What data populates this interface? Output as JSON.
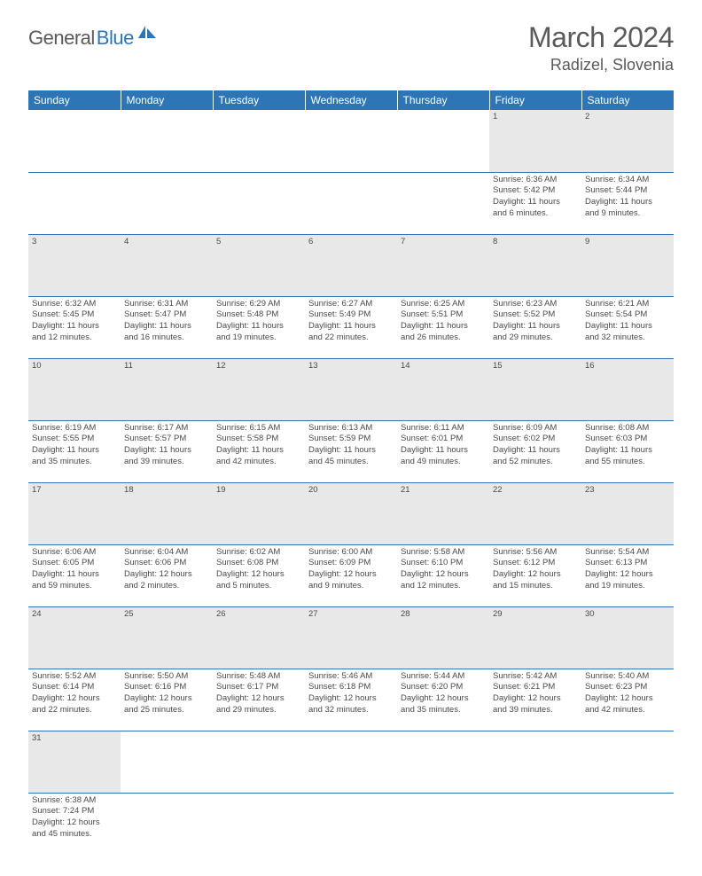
{
  "brand": {
    "part1": "General",
    "part2": "Blue"
  },
  "title": {
    "month_year": "March 2024",
    "location": "Radizel, Slovenia"
  },
  "colors": {
    "header_bg": "#2e75b6",
    "header_text": "#ffffff",
    "daynum_bg": "#e8e8e8",
    "row_divider": "#2e75b6",
    "text": "#4a4a4a",
    "brand_gray": "#5a5a5a",
    "brand_blue": "#2e75b6",
    "page_bg": "#ffffff"
  },
  "weekdays": [
    "Sunday",
    "Monday",
    "Tuesday",
    "Wednesday",
    "Thursday",
    "Friday",
    "Saturday"
  ],
  "weeks": [
    [
      null,
      null,
      null,
      null,
      null,
      {
        "n": "1",
        "sunrise": "Sunrise: 6:36 AM",
        "sunset": "Sunset: 5:42 PM",
        "day1": "Daylight: 11 hours",
        "day2": "and 6 minutes."
      },
      {
        "n": "2",
        "sunrise": "Sunrise: 6:34 AM",
        "sunset": "Sunset: 5:44 PM",
        "day1": "Daylight: 11 hours",
        "day2": "and 9 minutes."
      }
    ],
    [
      {
        "n": "3",
        "sunrise": "Sunrise: 6:32 AM",
        "sunset": "Sunset: 5:45 PM",
        "day1": "Daylight: 11 hours",
        "day2": "and 12 minutes."
      },
      {
        "n": "4",
        "sunrise": "Sunrise: 6:31 AM",
        "sunset": "Sunset: 5:47 PM",
        "day1": "Daylight: 11 hours",
        "day2": "and 16 minutes."
      },
      {
        "n": "5",
        "sunrise": "Sunrise: 6:29 AM",
        "sunset": "Sunset: 5:48 PM",
        "day1": "Daylight: 11 hours",
        "day2": "and 19 minutes."
      },
      {
        "n": "6",
        "sunrise": "Sunrise: 6:27 AM",
        "sunset": "Sunset: 5:49 PM",
        "day1": "Daylight: 11 hours",
        "day2": "and 22 minutes."
      },
      {
        "n": "7",
        "sunrise": "Sunrise: 6:25 AM",
        "sunset": "Sunset: 5:51 PM",
        "day1": "Daylight: 11 hours",
        "day2": "and 26 minutes."
      },
      {
        "n": "8",
        "sunrise": "Sunrise: 6:23 AM",
        "sunset": "Sunset: 5:52 PM",
        "day1": "Daylight: 11 hours",
        "day2": "and 29 minutes."
      },
      {
        "n": "9",
        "sunrise": "Sunrise: 6:21 AM",
        "sunset": "Sunset: 5:54 PM",
        "day1": "Daylight: 11 hours",
        "day2": "and 32 minutes."
      }
    ],
    [
      {
        "n": "10",
        "sunrise": "Sunrise: 6:19 AM",
        "sunset": "Sunset: 5:55 PM",
        "day1": "Daylight: 11 hours",
        "day2": "and 35 minutes."
      },
      {
        "n": "11",
        "sunrise": "Sunrise: 6:17 AM",
        "sunset": "Sunset: 5:57 PM",
        "day1": "Daylight: 11 hours",
        "day2": "and 39 minutes."
      },
      {
        "n": "12",
        "sunrise": "Sunrise: 6:15 AM",
        "sunset": "Sunset: 5:58 PM",
        "day1": "Daylight: 11 hours",
        "day2": "and 42 minutes."
      },
      {
        "n": "13",
        "sunrise": "Sunrise: 6:13 AM",
        "sunset": "Sunset: 5:59 PM",
        "day1": "Daylight: 11 hours",
        "day2": "and 45 minutes."
      },
      {
        "n": "14",
        "sunrise": "Sunrise: 6:11 AM",
        "sunset": "Sunset: 6:01 PM",
        "day1": "Daylight: 11 hours",
        "day2": "and 49 minutes."
      },
      {
        "n": "15",
        "sunrise": "Sunrise: 6:09 AM",
        "sunset": "Sunset: 6:02 PM",
        "day1": "Daylight: 11 hours",
        "day2": "and 52 minutes."
      },
      {
        "n": "16",
        "sunrise": "Sunrise: 6:08 AM",
        "sunset": "Sunset: 6:03 PM",
        "day1": "Daylight: 11 hours",
        "day2": "and 55 minutes."
      }
    ],
    [
      {
        "n": "17",
        "sunrise": "Sunrise: 6:06 AM",
        "sunset": "Sunset: 6:05 PM",
        "day1": "Daylight: 11 hours",
        "day2": "and 59 minutes."
      },
      {
        "n": "18",
        "sunrise": "Sunrise: 6:04 AM",
        "sunset": "Sunset: 6:06 PM",
        "day1": "Daylight: 12 hours",
        "day2": "and 2 minutes."
      },
      {
        "n": "19",
        "sunrise": "Sunrise: 6:02 AM",
        "sunset": "Sunset: 6:08 PM",
        "day1": "Daylight: 12 hours",
        "day2": "and 5 minutes."
      },
      {
        "n": "20",
        "sunrise": "Sunrise: 6:00 AM",
        "sunset": "Sunset: 6:09 PM",
        "day1": "Daylight: 12 hours",
        "day2": "and 9 minutes."
      },
      {
        "n": "21",
        "sunrise": "Sunrise: 5:58 AM",
        "sunset": "Sunset: 6:10 PM",
        "day1": "Daylight: 12 hours",
        "day2": "and 12 minutes."
      },
      {
        "n": "22",
        "sunrise": "Sunrise: 5:56 AM",
        "sunset": "Sunset: 6:12 PM",
        "day1": "Daylight: 12 hours",
        "day2": "and 15 minutes."
      },
      {
        "n": "23",
        "sunrise": "Sunrise: 5:54 AM",
        "sunset": "Sunset: 6:13 PM",
        "day1": "Daylight: 12 hours",
        "day2": "and 19 minutes."
      }
    ],
    [
      {
        "n": "24",
        "sunrise": "Sunrise: 5:52 AM",
        "sunset": "Sunset: 6:14 PM",
        "day1": "Daylight: 12 hours",
        "day2": "and 22 minutes."
      },
      {
        "n": "25",
        "sunrise": "Sunrise: 5:50 AM",
        "sunset": "Sunset: 6:16 PM",
        "day1": "Daylight: 12 hours",
        "day2": "and 25 minutes."
      },
      {
        "n": "26",
        "sunrise": "Sunrise: 5:48 AM",
        "sunset": "Sunset: 6:17 PM",
        "day1": "Daylight: 12 hours",
        "day2": "and 29 minutes."
      },
      {
        "n": "27",
        "sunrise": "Sunrise: 5:46 AM",
        "sunset": "Sunset: 6:18 PM",
        "day1": "Daylight: 12 hours",
        "day2": "and 32 minutes."
      },
      {
        "n": "28",
        "sunrise": "Sunrise: 5:44 AM",
        "sunset": "Sunset: 6:20 PM",
        "day1": "Daylight: 12 hours",
        "day2": "and 35 minutes."
      },
      {
        "n": "29",
        "sunrise": "Sunrise: 5:42 AM",
        "sunset": "Sunset: 6:21 PM",
        "day1": "Daylight: 12 hours",
        "day2": "and 39 minutes."
      },
      {
        "n": "30",
        "sunrise": "Sunrise: 5:40 AM",
        "sunset": "Sunset: 6:23 PM",
        "day1": "Daylight: 12 hours",
        "day2": "and 42 minutes."
      }
    ],
    [
      {
        "n": "31",
        "sunrise": "Sunrise: 6:38 AM",
        "sunset": "Sunset: 7:24 PM",
        "day1": "Daylight: 12 hours",
        "day2": "and 45 minutes."
      },
      null,
      null,
      null,
      null,
      null,
      null
    ]
  ]
}
